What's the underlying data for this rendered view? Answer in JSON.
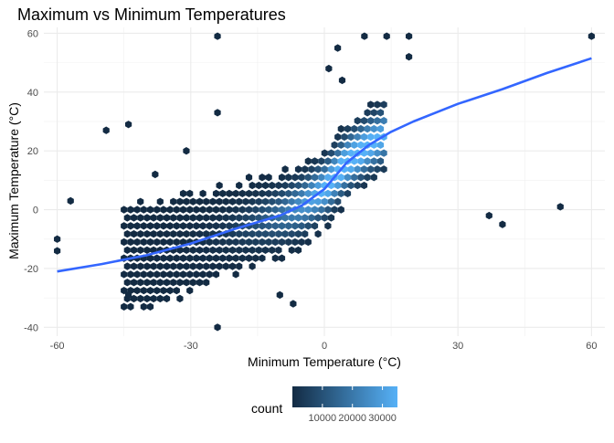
{
  "chart_data": {
    "type": "hexbin",
    "title": "Maximum vs Minimum Temperatures",
    "xlabel": "Minimum Temperature (°C)",
    "ylabel": "Maximum Temperature (°C)",
    "xlim": [
      -63,
      63
    ],
    "ylim": [
      -43,
      62
    ],
    "x_ticks": [
      -60,
      -30,
      0,
      30,
      60
    ],
    "y_ticks": [
      -40,
      -20,
      0,
      20,
      40,
      60
    ],
    "grid": true,
    "legend": {
      "title": "count",
      "position": "bottom",
      "ticks": [
        10000,
        20000,
        30000
      ],
      "range": [
        1,
        35000
      ],
      "color_low": "#132b43",
      "color_high": "#56b1f7"
    },
    "smooth_color": "#3366ff",
    "smooth_line": [
      [
        -60,
        -21
      ],
      [
        -50,
        -18.5
      ],
      [
        -40,
        -15.5
      ],
      [
        -30,
        -11.5
      ],
      [
        -20,
        -6.5
      ],
      [
        -10,
        -2
      ],
      [
        -5,
        1.5
      ],
      [
        0,
        7
      ],
      [
        5,
        16
      ],
      [
        10,
        22
      ],
      [
        15,
        26.5
      ],
      [
        20,
        30
      ],
      [
        30,
        36
      ],
      [
        40,
        41
      ],
      [
        50,
        46.5
      ],
      [
        60,
        51.5
      ]
    ],
    "outliers": [
      [
        -24,
        59
      ],
      [
        9,
        59
      ],
      [
        14,
        59
      ],
      [
        19,
        59
      ],
      [
        60,
        59
      ],
      [
        3,
        55
      ],
      [
        1,
        48
      ],
      [
        4,
        44
      ],
      [
        19,
        52
      ],
      [
        -24,
        33
      ],
      [
        -44,
        29
      ],
      [
        -49,
        27
      ],
      [
        -31,
        20
      ],
      [
        -38,
        12
      ],
      [
        -57,
        3
      ],
      [
        -60,
        -10
      ],
      [
        -60,
        -14
      ],
      [
        -44,
        -29
      ],
      [
        -24,
        -40
      ],
      [
        -10,
        -29
      ],
      [
        -7,
        -32
      ],
      [
        53,
        1
      ],
      [
        37,
        -2
      ],
      [
        40,
        -5
      ]
    ]
  }
}
